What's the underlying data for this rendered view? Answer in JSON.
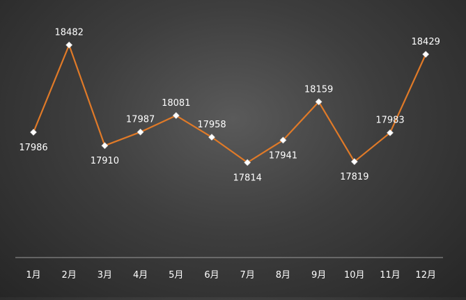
{
  "chart_data": {
    "type": "line",
    "title": "",
    "xlabel": "",
    "ylabel": "",
    "categories": [
      "1月",
      "2月",
      "3月",
      "4月",
      "5月",
      "6月",
      "7月",
      "8月",
      "9月",
      "10月",
      "11月",
      "12月"
    ],
    "series": [
      {
        "values": [
          17986,
          18482,
          17910,
          17987,
          18081,
          17958,
          17814,
          17941,
          18159,
          17819,
          17983,
          18429
        ],
        "label_positions": [
          "below",
          "above",
          "below",
          "above",
          "above",
          "above",
          "below",
          "below",
          "above",
          "below",
          "above",
          "above"
        ]
      }
    ],
    "ylim": [
      17610,
      18540
    ],
    "grid": false,
    "legend": "none",
    "line_color": "#e07a28",
    "marker_color": "#ffffff",
    "label_color": "#ffffff",
    "axis_color": "#9a9a9a"
  }
}
